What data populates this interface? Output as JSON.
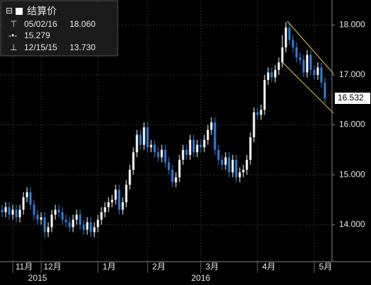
{
  "chart_data": {
    "type": "candlestick",
    "legend": {
      "title": "结算价",
      "high_date": "05/02/16",
      "high": "18.060",
      "average": "15.279",
      "low_date": "12/15/15",
      "low": "13.730"
    },
    "open": [
      14.3,
      14.25,
      14.35,
      14.2,
      14.3,
      14.15,
      14.3,
      14.55,
      14.65,
      14.4,
      14.2,
      14.1,
      14.15,
      13.85,
      13.95,
      14.2,
      14.3,
      14.25,
      14.1,
      14.05,
      13.95,
      14.1,
      14.2,
      14.0,
      13.9,
      14.05,
      13.85,
      13.95,
      14.1,
      14.25,
      14.35,
      14.45,
      14.5,
      14.7,
      14.3,
      14.45,
      14.8,
      15.1,
      15.45,
      15.8,
      15.6,
      15.95,
      15.55,
      15.6,
      15.45,
      15.35,
      15.5,
      15.25,
      15.1,
      14.85,
      14.95,
      15.3,
      15.5,
      15.4,
      15.7,
      15.45,
      15.6,
      15.55,
      15.7,
      15.9,
      16.05,
      15.5,
      15.3,
      15.2,
      15.35,
      15.05,
      15.3,
      14.95,
      15.05,
      15.1,
      15.3,
      15.75,
      16.25,
      16.2,
      16.3,
      16.9,
      17.05,
      16.95,
      17.1,
      17.25,
      17.55,
      17.95,
      17.7,
      17.55,
      17.35,
      17.3,
      17.05,
      17.4,
      17.1,
      17.0,
      17.15,
      16.85
    ],
    "high": [
      14.4,
      14.45,
      14.45,
      14.4,
      14.4,
      14.4,
      14.65,
      14.75,
      14.75,
      14.5,
      14.3,
      14.25,
      14.25,
      14.05,
      14.3,
      14.4,
      14.4,
      14.35,
      14.2,
      14.15,
      14.2,
      14.3,
      14.3,
      14.1,
      14.15,
      14.15,
      14.05,
      14.2,
      14.35,
      14.45,
      14.55,
      14.6,
      14.8,
      14.8,
      14.55,
      14.9,
      15.2,
      15.55,
      15.9,
      15.9,
      16.05,
      16.05,
      15.7,
      15.7,
      15.55,
      15.6,
      15.6,
      15.35,
      15.2,
      15.05,
      15.4,
      15.6,
      15.6,
      15.8,
      15.8,
      15.7,
      15.7,
      15.8,
      16.0,
      16.15,
      16.15,
      15.6,
      15.4,
      15.45,
      15.45,
      15.4,
      15.4,
      15.15,
      15.2,
      15.4,
      15.85,
      16.35,
      16.35,
      16.4,
      17.0,
      17.15,
      17.15,
      17.2,
      17.35,
      17.8,
      18.06,
      18.05,
      17.8,
      17.65,
      17.45,
      17.4,
      17.5,
      17.5,
      17.2,
      17.25,
      17.25,
      16.95
    ],
    "low": [
      14.15,
      14.15,
      14.1,
      14.1,
      14.05,
      14.05,
      14.2,
      14.45,
      14.3,
      14.1,
      14.0,
      14.0,
      13.73,
      13.75,
      13.85,
      14.1,
      14.15,
      14.0,
      13.95,
      13.85,
      13.85,
      14.0,
      13.9,
      13.8,
      13.8,
      13.75,
      13.75,
      13.85,
      14.0,
      14.15,
      14.25,
      14.35,
      14.4,
      14.2,
      14.2,
      14.35,
      14.7,
      15.0,
      15.35,
      15.5,
      15.5,
      15.45,
      15.45,
      15.35,
      15.25,
      15.25,
      15.15,
      15.0,
      14.75,
      14.75,
      14.85,
      15.2,
      15.3,
      15.3,
      15.35,
      15.35,
      15.45,
      15.45,
      15.6,
      15.8,
      15.4,
      15.2,
      15.1,
      15.1,
      14.95,
      14.95,
      14.85,
      14.85,
      14.95,
      15.0,
      15.2,
      15.65,
      16.1,
      16.1,
      16.2,
      16.8,
      16.85,
      16.85,
      17.0,
      17.15,
      17.45,
      17.6,
      17.45,
      17.25,
      17.2,
      16.95,
      16.95,
      17.0,
      16.9,
      16.9,
      16.75,
      16.43
    ],
    "close": [
      14.25,
      14.35,
      14.2,
      14.3,
      14.15,
      14.3,
      14.55,
      14.65,
      14.4,
      14.2,
      14.1,
      14.15,
      13.85,
      13.95,
      14.2,
      14.3,
      14.25,
      14.1,
      14.05,
      13.95,
      14.1,
      14.2,
      14.0,
      13.9,
      14.05,
      13.85,
      13.95,
      14.1,
      14.25,
      14.35,
      14.45,
      14.5,
      14.7,
      14.3,
      14.45,
      14.8,
      15.1,
      15.45,
      15.8,
      15.6,
      15.95,
      15.55,
      15.6,
      15.45,
      15.35,
      15.5,
      15.25,
      15.1,
      14.85,
      14.95,
      15.3,
      15.5,
      15.4,
      15.7,
      15.45,
      15.6,
      15.55,
      15.7,
      15.9,
      16.05,
      15.5,
      15.3,
      15.2,
      15.35,
      15.05,
      15.3,
      14.95,
      15.05,
      15.1,
      15.3,
      15.75,
      16.25,
      16.2,
      16.3,
      16.9,
      17.05,
      16.95,
      17.1,
      17.25,
      17.55,
      17.95,
      17.7,
      17.55,
      17.35,
      17.3,
      17.05,
      17.4,
      17.1,
      17.0,
      17.15,
      16.85,
      16.532
    ],
    "up_color": "#ffffff",
    "down_color": "#2f7fd8",
    "ylim": [
      13.26,
      18.5
    ],
    "yticks": [
      {
        "value": 14,
        "label": "14.000"
      },
      {
        "value": 15,
        "label": "15.000"
      },
      {
        "value": 16,
        "label": "16.000"
      },
      {
        "value": 17,
        "label": "17.000"
      },
      {
        "value": 18,
        "label": "18.000"
      }
    ],
    "xticks": [
      {
        "value": 3,
        "label": "11月"
      },
      {
        "value": 11,
        "label": "12月"
      },
      {
        "value": 27,
        "label": "1月"
      },
      {
        "value": 41,
        "label": "2月"
      },
      {
        "value": 56,
        "label": "3月"
      },
      {
        "value": 72,
        "label": "4月"
      },
      {
        "value": 88,
        "label": "5月"
      }
    ],
    "year_ticks": [
      {
        "value": 10,
        "label": "2015"
      },
      {
        "value": 56,
        "label": "2016"
      }
    ],
    "last_price": 16.532,
    "grid": true
  }
}
